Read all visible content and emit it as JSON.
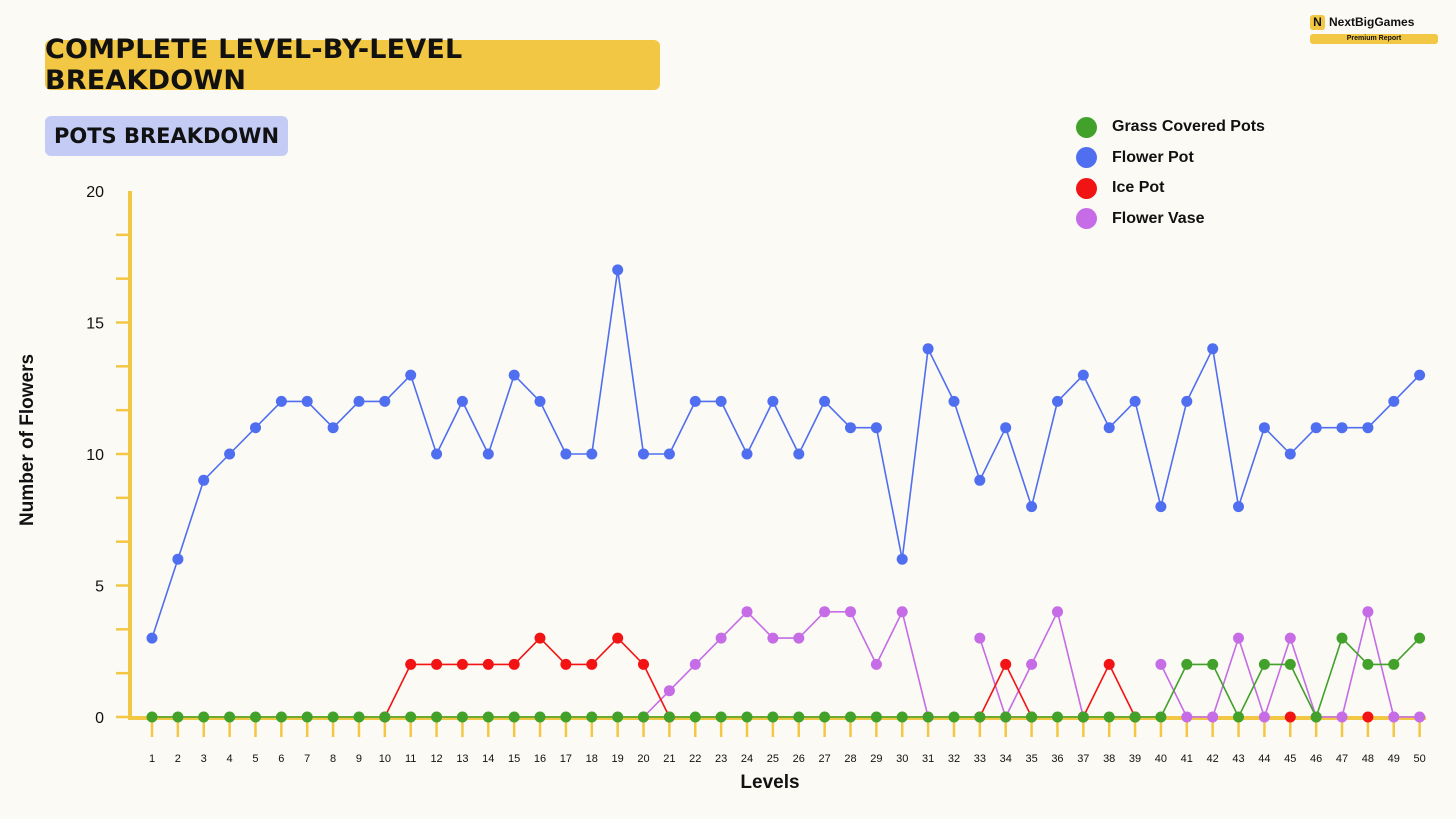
{
  "header": {
    "title": "COMPLETE LEVEL-BY-LEVEL BREAKDOWN",
    "subtitle": "POTS BREAKDOWN"
  },
  "brand": {
    "logo_letter": "N",
    "name": "NextBigGames",
    "badge": "Premium Report"
  },
  "colors": {
    "accent_yellow": "#f2c744",
    "subtitle_bg": "#c4ccf6",
    "axis": "#f2c744"
  },
  "chart_data": {
    "type": "line",
    "xlabel": "Levels",
    "ylabel": "Number of Flowers",
    "ylim": [
      0,
      20
    ],
    "y_ticks": [
      0,
      5,
      10,
      15,
      20
    ],
    "grid": false,
    "legend_position": "top-right",
    "x": [
      1,
      2,
      3,
      4,
      5,
      6,
      7,
      8,
      9,
      10,
      11,
      12,
      13,
      14,
      15,
      16,
      17,
      18,
      19,
      20,
      21,
      22,
      23,
      24,
      25,
      26,
      27,
      28,
      29,
      30,
      31,
      32,
      33,
      34,
      35,
      36,
      37,
      38,
      39,
      40,
      41,
      42,
      43,
      44,
      45,
      46,
      47,
      48,
      49,
      50
    ],
    "series": [
      {
        "name": "Grass Covered Pots",
        "color": "#41a12b",
        "values": [
          0,
          0,
          0,
          0,
          0,
          0,
          0,
          0,
          0,
          0,
          0,
          0,
          0,
          0,
          0,
          0,
          0,
          0,
          0,
          0,
          0,
          0,
          0,
          0,
          0,
          0,
          0,
          0,
          0,
          0,
          0,
          0,
          0,
          0,
          0,
          0,
          0,
          0,
          0,
          0,
          2,
          2,
          0,
          2,
          2,
          0,
          3,
          2,
          2,
          3
        ]
      },
      {
        "name": "Flower Pot",
        "color": "#4f6ff0",
        "values": [
          3,
          6,
          9,
          10,
          11,
          12,
          12,
          11,
          12,
          12,
          13,
          10,
          12,
          10,
          13,
          12,
          10,
          10,
          17,
          10,
          10,
          12,
          12,
          10,
          12,
          10,
          12,
          11,
          11,
          6,
          14,
          12,
          9,
          11,
          8,
          12,
          13,
          11,
          12,
          8,
          12,
          14,
          8,
          11,
          10,
          11,
          11,
          11,
          12,
          13
        ]
      },
      {
        "name": "Ice Pot",
        "color": "#f21414",
        "values": [
          null,
          null,
          null,
          null,
          null,
          null,
          null,
          null,
          null,
          0,
          2,
          2,
          2,
          2,
          2,
          3,
          2,
          2,
          3,
          2,
          0,
          null,
          null,
          null,
          null,
          null,
          null,
          null,
          null,
          null,
          null,
          null,
          0,
          2,
          0,
          null,
          0,
          2,
          0,
          null,
          null,
          null,
          null,
          null,
          0,
          null,
          null,
          0,
          null,
          null
        ]
      },
      {
        "name": "Flower Vase",
        "color": "#c56ce6",
        "values": [
          null,
          null,
          null,
          null,
          null,
          null,
          null,
          null,
          null,
          null,
          null,
          null,
          null,
          null,
          null,
          null,
          null,
          null,
          null,
          0,
          1,
          2,
          3,
          4,
          3,
          3,
          4,
          4,
          2,
          4,
          0,
          null,
          3,
          0,
          2,
          4,
          0,
          null,
          null,
          2,
          0,
          0,
          3,
          0,
          3,
          0,
          0,
          4,
          0,
          0
        ]
      }
    ]
  }
}
